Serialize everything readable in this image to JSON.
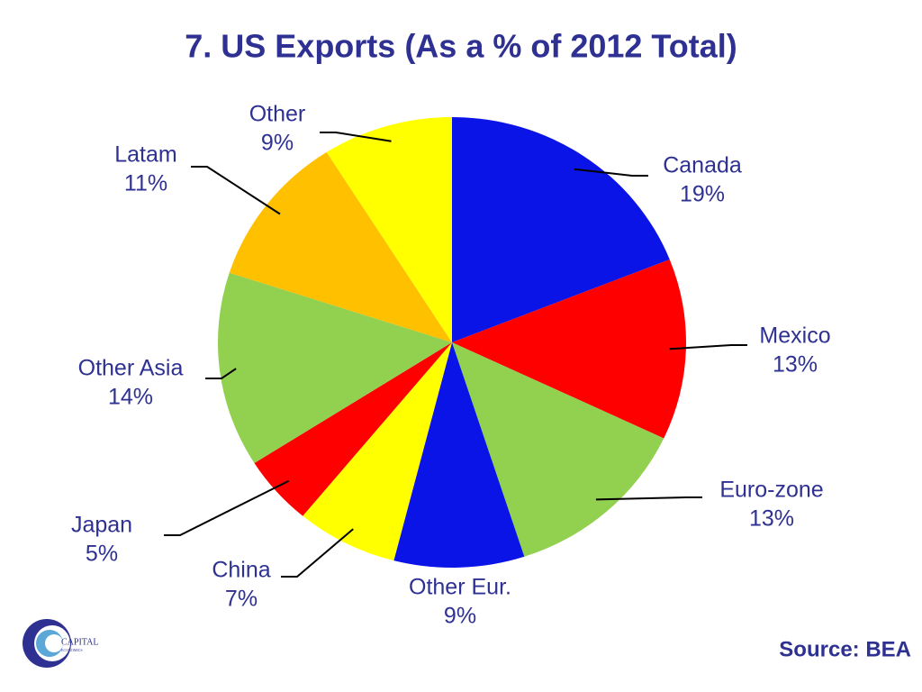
{
  "chart_data": {
    "type": "pie",
    "title": "7. US Exports (As a % of 2012 Total)",
    "categories": [
      "Canada",
      "Mexico",
      "Euro-zone",
      "Other Eur.",
      "China",
      "Japan",
      "Other Asia",
      "Latam",
      "Other"
    ],
    "values": [
      19,
      13,
      13,
      9,
      7,
      5,
      14,
      11,
      9
    ],
    "value_labels": [
      "19%",
      "13%",
      "13%",
      "9%",
      "7%",
      "5%",
      "14%",
      "11%",
      "9%"
    ],
    "colors": [
      "#0a14e6",
      "#ff0000",
      "#92d050",
      "#0a14e6",
      "#ffff00",
      "#ff0000",
      "#92d050",
      "#ffc000",
      "#ffff00"
    ],
    "source": "Source: BEA"
  },
  "logo": {
    "name": "CAPITAL",
    "subname": "ECONOMICS"
  }
}
